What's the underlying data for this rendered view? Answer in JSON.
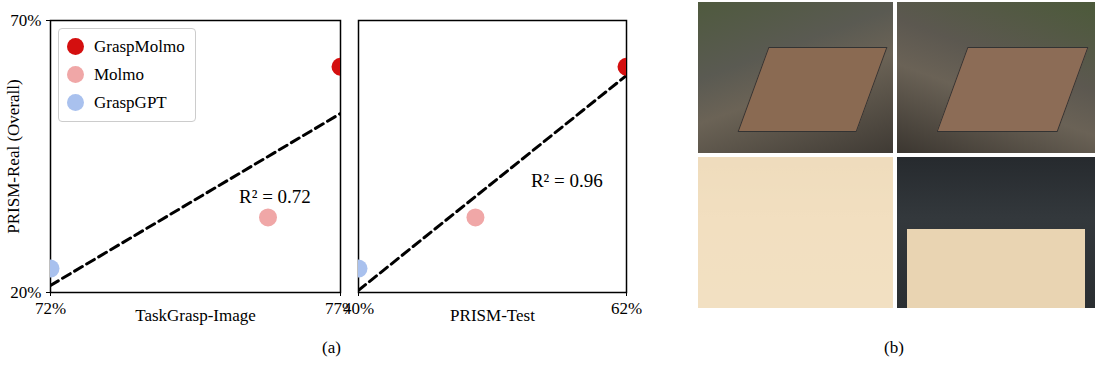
{
  "chart_data": [
    {
      "type": "scatter",
      "x_label": "TaskGrasp-Image",
      "y_label": "PRISM-Real (Overall)",
      "xlim": [
        72,
        77
      ],
      "xticks": [
        {
          "value": 72,
          "label": "72%"
        },
        {
          "value": 77,
          "label": "77%"
        }
      ],
      "ylim": [
        20,
        70
      ],
      "yticks": [
        {
          "value": 20,
          "label": "20%"
        },
        {
          "value": 70,
          "label": "70%"
        }
      ],
      "legend": "upper left",
      "series": [
        {
          "name": "GraspMolmo",
          "color": "#d40f0f",
          "marker": "circle",
          "x": [
            77
          ],
          "values": [
            61.5
          ]
        },
        {
          "name": "Molmo",
          "color": "#f0a7a7",
          "marker": "circle",
          "x": [
            75.75
          ],
          "values": [
            33.8
          ]
        },
        {
          "name": "GraspGPT",
          "color": "#a9c1ee",
          "marker": "circle",
          "x": [
            72
          ],
          "values": [
            24.4
          ]
        }
      ],
      "trend_line": {
        "line_style": "dashed",
        "color": "#000000",
        "x": [
          72,
          77
        ],
        "values": [
          21.3,
          52.9
        ]
      },
      "annotations": [
        {
          "text": "R² = 0.72",
          "x": 75.87,
          "y": 37.5
        }
      ]
    },
    {
      "type": "scatter",
      "x_label": "PRISM-Test",
      "xlim": [
        40,
        62
      ],
      "xticks": [
        {
          "value": 40,
          "label": "40%"
        },
        {
          "value": 62,
          "label": "62%"
        }
      ],
      "ylim": [
        20,
        70
      ],
      "tick_labels": "x",
      "series": [
        {
          "name": "GraspMolmo",
          "color": "#d40f0f",
          "marker": "circle",
          "x": [
            62
          ],
          "values": [
            61.5
          ]
        },
        {
          "name": "Molmo",
          "color": "#f0a7a7",
          "marker": "circle",
          "x": [
            49.6
          ],
          "values": [
            33.8
          ]
        },
        {
          "name": "GraspGPT",
          "color": "#a9c1ee",
          "marker": "circle",
          "x": [
            40
          ],
          "values": [
            24.4
          ]
        }
      ],
      "trend_line": {
        "line_style": "dashed",
        "color": "#000000",
        "x": [
          40,
          62
        ],
        "values": [
          20.4,
          59.9
        ]
      },
      "annotations": [
        {
          "text": "R² = 0.96",
          "x": 57.1,
          "y": 40.6
        }
      ]
    }
  ],
  "panel_labels": [
    "(a)",
    "(b)"
  ]
}
